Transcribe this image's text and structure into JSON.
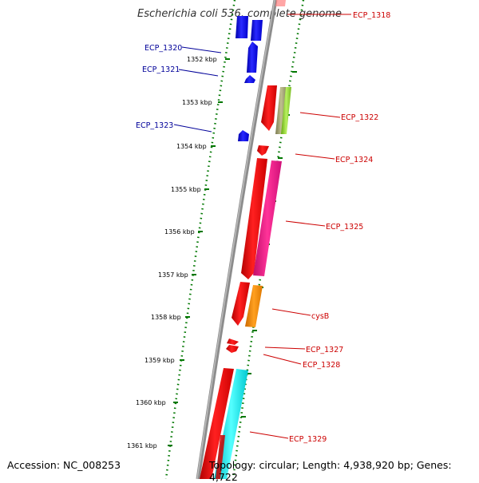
{
  "title": "Escherichia coli 536, complete genome",
  "accession": "Accession: NC_008253",
  "summary": "Topology: circular; Length: 4,938,920 bp; Genes: 4,722",
  "colors": {
    "forward_label": "#cc0000",
    "reverse_label": "#000099",
    "backbone": "#888888",
    "scale": "#007700"
  },
  "ticks": [
    "1352 kbp",
    "1353 kbp",
    "1354 kbp",
    "1355 kbp",
    "1356 kbp",
    "1357 kbp",
    "1358 kbp",
    "1359 kbp",
    "1360 kbp",
    "1361 kbp"
  ],
  "gene_labels": [
    {
      "text": "ECP_1318",
      "strand": "forward"
    },
    {
      "text": "ECP_1320",
      "strand": "reverse"
    },
    {
      "text": "ECP_1321",
      "strand": "reverse"
    },
    {
      "text": "ECP_1322",
      "strand": "forward"
    },
    {
      "text": "ECP_1323",
      "strand": "reverse"
    },
    {
      "text": "ECP_1324",
      "strand": "forward"
    },
    {
      "text": "ECP_1325",
      "strand": "forward"
    },
    {
      "text": "cysB",
      "strand": "forward"
    },
    {
      "text": "ECP_1327",
      "strand": "forward"
    },
    {
      "text": "ECP_1328",
      "strand": "forward"
    },
    {
      "text": "ECP_1329",
      "strand": "forward"
    }
  ],
  "features": [
    {
      "name": "ECP_1318",
      "color": "#ff6666"
    },
    {
      "name": "ECP_1320",
      "color": "#0000ee"
    },
    {
      "name": "ECP_1321",
      "color": "#0000ee"
    },
    {
      "name": "ECP_1322",
      "color": "#ff0000"
    },
    {
      "name": "ECP_1322-rna",
      "color": "#a0a070"
    },
    {
      "name": "ECP_1322-misc",
      "color": "#99dd33"
    },
    {
      "name": "ECP_1323",
      "color": "#0000ee"
    },
    {
      "name": "ECP_1324",
      "color": "#ff0000"
    },
    {
      "name": "ECP_1325",
      "color": "#ff0000"
    },
    {
      "name": "ECP_1325-pink",
      "color": "#ff1493"
    },
    {
      "name": "cysB",
      "color": "#ff0000"
    },
    {
      "name": "cysB-orange",
      "color": "#ff8c00"
    },
    {
      "name": "ECP_1327",
      "color": "#ff0000"
    },
    {
      "name": "ECP_1328",
      "color": "#ff0000"
    },
    {
      "name": "ECP_1329",
      "color": "#ff0000"
    },
    {
      "name": "ECP_1329-cyan",
      "color": "#00e5ee"
    }
  ]
}
